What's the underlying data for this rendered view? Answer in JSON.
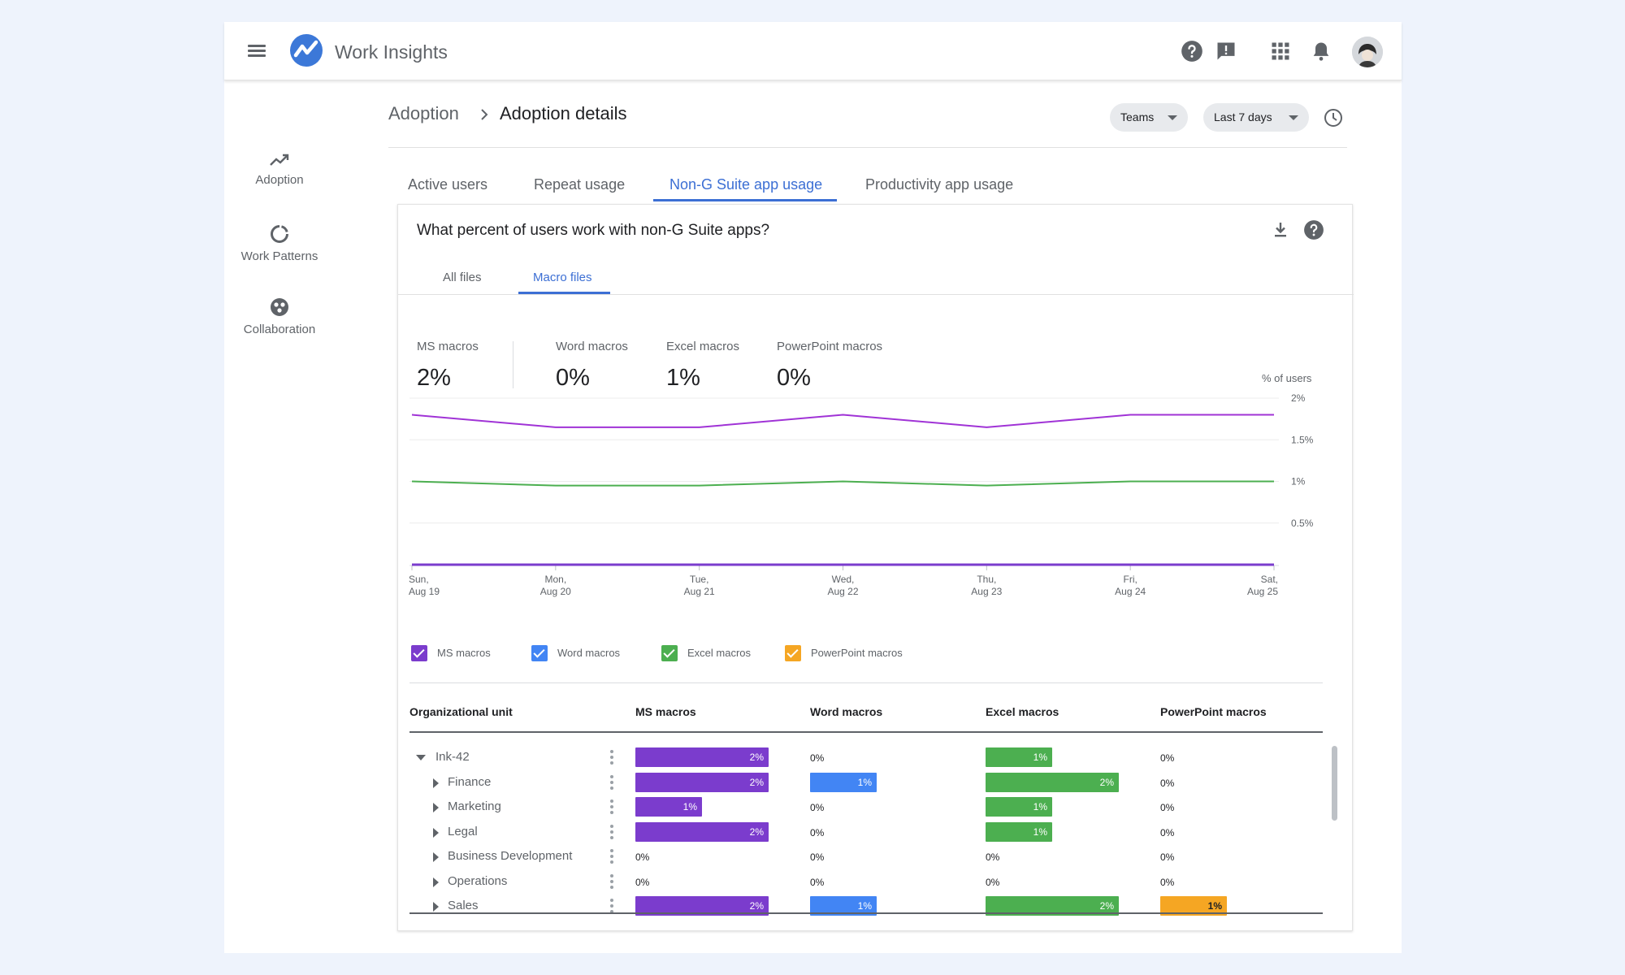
{
  "app": {
    "title": "Work Insights"
  },
  "sidebar": {
    "items": [
      {
        "label": "Adoption",
        "icon": "trending-up-icon"
      },
      {
        "label": "Work Patterns",
        "icon": "refresh-circle-icon"
      },
      {
        "label": "Collaboration",
        "icon": "collaboration-icon"
      }
    ]
  },
  "breadcrumb": {
    "parent": "Adoption",
    "current": "Adoption details"
  },
  "filters": {
    "group": "Teams",
    "range": "Last 7 days"
  },
  "tabs": [
    {
      "label": "Active users",
      "active": false
    },
    {
      "label": "Repeat usage",
      "active": false
    },
    {
      "label": "Non-G Suite app usage",
      "active": true
    },
    {
      "label": "Productivity app usage",
      "active": false
    }
  ],
  "card": {
    "question": "What percent of users work with non-G Suite apps?",
    "subtabs": [
      {
        "label": "All files",
        "active": false
      },
      {
        "label": "Macro files",
        "active": true
      }
    ],
    "units": "% of users"
  },
  "metrics": [
    {
      "label": "MS macros",
      "value": "2%"
    },
    {
      "label": "Word macros",
      "value": "0%"
    },
    {
      "label": "Excel macros",
      "value": "1%"
    },
    {
      "label": "PowerPoint macros",
      "value": "0%"
    }
  ],
  "colors": {
    "ms": "#7b3ccd",
    "word": "#4285f4",
    "excel": "#4caf50",
    "ppt": "#f5a623",
    "accent": "#3c6fd4"
  },
  "chart_data": {
    "type": "line",
    "x": [
      "Sun, Aug 19",
      "Mon, Aug 20",
      "Tue, Aug 21",
      "Wed, Aug 22",
      "Thu, Aug 23",
      "Fri, Aug 24",
      "Sat, Aug 25"
    ],
    "x_ticks": [
      [
        "Sun,",
        "Aug 19"
      ],
      [
        "Mon,",
        "Aug 20"
      ],
      [
        "Tue,",
        "Aug 21"
      ],
      [
        "Wed,",
        "Aug 22"
      ],
      [
        "Thu,",
        "Aug 23"
      ],
      [
        "Fri,",
        "Aug 24"
      ],
      [
        "Sat,",
        "Aug 25"
      ]
    ],
    "y_ticks": [
      "2%",
      "1.5%",
      "1%",
      "0.5%"
    ],
    "y_tick_values": [
      2,
      1.5,
      1,
      0.5
    ],
    "ylim": [
      0,
      2
    ],
    "ylabel": "% of users",
    "grid": true,
    "legend": "bottom-left",
    "series": [
      {
        "name": "MS macros",
        "color": "#a033d6",
        "values": [
          1.8,
          1.65,
          1.65,
          1.8,
          1.65,
          1.8,
          1.8
        ]
      },
      {
        "name": "Excel macros",
        "color": "#4caf50",
        "values": [
          1.0,
          0.95,
          0.95,
          1.0,
          0.95,
          1.0,
          1.0
        ]
      },
      {
        "name": "Word macros",
        "color": "#4285f4",
        "values": [
          0,
          0,
          0,
          0,
          0,
          0,
          0
        ]
      },
      {
        "name": "PowerPoint macros",
        "color": "#7b3ccd",
        "values": [
          0,
          0,
          0,
          0,
          0,
          0,
          0
        ]
      }
    ]
  },
  "legend": [
    {
      "label": "MS macros",
      "color": "#7b3ccd"
    },
    {
      "label": "Word macros",
      "color": "#4285f4"
    },
    {
      "label": "Excel macros",
      "color": "#4caf50"
    },
    {
      "label": "PowerPoint macros",
      "color": "#f5a623"
    }
  ],
  "table": {
    "headers": [
      "Organizational unit",
      "MS macros",
      "Word macros",
      "Excel macros",
      "PowerPoint macros"
    ],
    "rows": [
      {
        "name": "Ink-42",
        "expanded": true,
        "level": 0,
        "values": [
          2,
          0,
          1,
          0
        ],
        "labels": [
          "2%",
          "0%",
          "1%",
          "0%"
        ]
      },
      {
        "name": "Finance",
        "expanded": false,
        "level": 1,
        "values": [
          2,
          1,
          2,
          0
        ],
        "labels": [
          "2%",
          "1%",
          "2%",
          "0%"
        ]
      },
      {
        "name": "Marketing",
        "expanded": false,
        "level": 1,
        "values": [
          1,
          0,
          1,
          0
        ],
        "labels": [
          "1%",
          "0%",
          "1%",
          "0%"
        ]
      },
      {
        "name": "Legal",
        "expanded": false,
        "level": 1,
        "values": [
          2,
          0,
          1,
          0
        ],
        "labels": [
          "2%",
          "0%",
          "1%",
          "0%"
        ]
      },
      {
        "name": "Business Development",
        "expanded": false,
        "level": 1,
        "values": [
          0,
          0,
          0,
          0
        ],
        "labels": [
          "0%",
          "0%",
          "0%",
          "0%"
        ]
      },
      {
        "name": "Operations",
        "expanded": false,
        "level": 1,
        "values": [
          0,
          0,
          0,
          0
        ],
        "labels": [
          "0%",
          "0%",
          "0%",
          "0%"
        ]
      },
      {
        "name": "Sales",
        "expanded": false,
        "level": 1,
        "values": [
          2,
          1,
          2,
          1
        ],
        "labels": [
          "2%",
          "1%",
          "2%",
          "1%"
        ]
      }
    ]
  }
}
